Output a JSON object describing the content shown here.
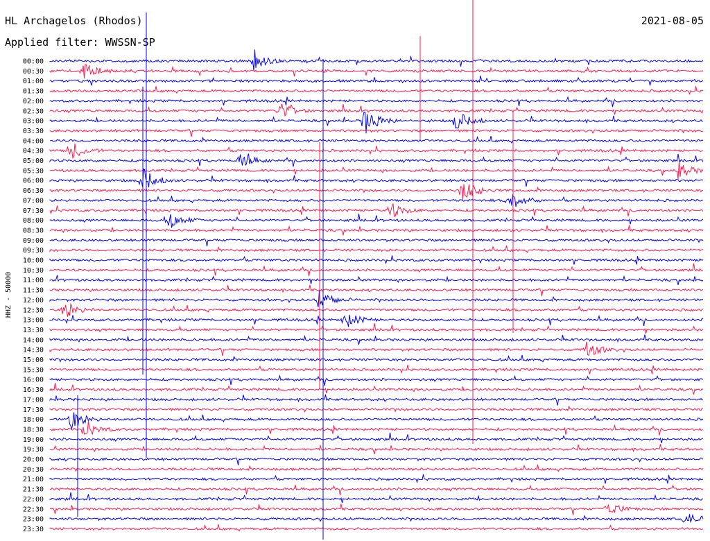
{
  "header": {
    "station": "HL Archagelos (Rhodos)",
    "date": "2021-08-05",
    "filter": "Applied filter: WWSSN-SP"
  },
  "chart_data": {
    "type": "line",
    "title": "HL Archagelos (Rhodos)",
    "subtitle": "Applied filter: WWSSN-SP",
    "ylabel": "HHZ - 50000",
    "row_labels": [
      "00:00",
      "00:30",
      "01:00",
      "01:30",
      "02:00",
      "02:30",
      "03:00",
      "03:30",
      "04:00",
      "04:30",
      "05:00",
      "05:30",
      "06:00",
      "06:30",
      "07:00",
      "07:30",
      "08:00",
      "08:30",
      "09:00",
      "09:30",
      "10:00",
      "10:30",
      "11:00",
      "11:30",
      "12:00",
      "12:30",
      "13:00",
      "13:30",
      "14:00",
      "14:30",
      "15:00",
      "15:30",
      "16:00",
      "16:30",
      "17:00",
      "17:30",
      "18:00",
      "18:30",
      "19:00",
      "19:30",
      "20:00",
      "20:30",
      "21:00",
      "21:30",
      "22:00",
      "22:30",
      "23:00",
      "23:30"
    ],
    "series_colors": [
      "#0000ff",
      "#ff1a4d"
    ],
    "trace_minutes": 30,
    "events": [
      {
        "row": 0,
        "t": 0.31,
        "amp": 1.5
      },
      {
        "row": 1,
        "t": 0.05,
        "amp": 1.4
      },
      {
        "row": 5,
        "t": 0.35,
        "amp": 1.3
      },
      {
        "row": 6,
        "t": 0.48,
        "amp": 2.2
      },
      {
        "row": 6,
        "t": 0.62,
        "amp": 1.6
      },
      {
        "row": 9,
        "t": 0.03,
        "amp": 1.5
      },
      {
        "row": 10,
        "t": 0.29,
        "amp": 1.3
      },
      {
        "row": 11,
        "t": 0.96,
        "amp": 1.2
      },
      {
        "row": 12,
        "t": 0.14,
        "amp": 2.0
      },
      {
        "row": 13,
        "t": 0.63,
        "amp": 1.8
      },
      {
        "row": 14,
        "t": 0.7,
        "amp": 1.7
      },
      {
        "row": 15,
        "t": 0.52,
        "amp": 1.2
      },
      {
        "row": 16,
        "t": 0.18,
        "amp": 1.4
      },
      {
        "row": 24,
        "t": 0.41,
        "amp": 1.6
      },
      {
        "row": 25,
        "t": 0.02,
        "amp": 1.4
      },
      {
        "row": 26,
        "t": 0.45,
        "amp": 1.3
      },
      {
        "row": 29,
        "t": 0.82,
        "amp": 1.2
      },
      {
        "row": 36,
        "t": 0.03,
        "amp": 1.6
      },
      {
        "row": 37,
        "t": 0.05,
        "amp": 1.3
      },
      {
        "row": 45,
        "t": 0.85,
        "amp": 1.2
      },
      {
        "row": 46,
        "t": 0.97,
        "amp": 1.2
      }
    ],
    "grid": false
  }
}
